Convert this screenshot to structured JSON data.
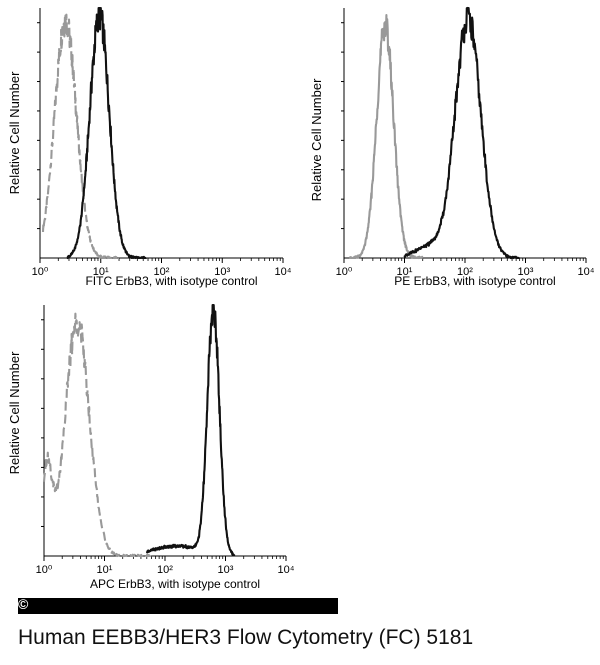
{
  "chart_data": [
    {
      "type": "histogram-overlay",
      "ylabel": "Relative Cell Number",
      "xlabel": "FITC  ErbB3,  with isotype control",
      "xscale": "log",
      "xlim": [
        1,
        10000
      ],
      "tick_labels": [
        "10⁰",
        "10¹",
        "10²",
        "10³",
        "10⁴"
      ],
      "series": [
        {
          "name": "isotype control",
          "color": "#999999",
          "dashed": true,
          "peaks": [
            {
              "log_center": 0.42,
              "height": 0.95,
              "sigma": 0.18
            }
          ],
          "range": [
            0.05,
            1.3
          ]
        },
        {
          "name": "ErbB3",
          "color": "#111111",
          "dashed": false,
          "peaks": [
            {
              "log_center": 0.98,
              "height": 0.97,
              "sigma": 0.16
            }
          ],
          "range": [
            0.45,
            1.75
          ]
        }
      ]
    },
    {
      "type": "histogram-overlay",
      "ylabel": "Relative Cell Number",
      "xlabel": "PE  ErbB3,  with isotype control",
      "xscale": "log",
      "xlim": [
        1,
        10000
      ],
      "tick_labels": [
        "10⁰",
        "10¹",
        "10²",
        "10³",
        "10⁴"
      ],
      "series": [
        {
          "name": "isotype control",
          "color": "#999999",
          "dashed": false,
          "peaks": [
            {
              "log_center": 0.68,
              "height": 0.93,
              "sigma": 0.14
            }
          ],
          "range": [
            0.1,
            1.3
          ]
        },
        {
          "name": "ErbB3",
          "color": "#111111",
          "dashed": false,
          "peaks": [
            {
              "log_center": 2.05,
              "height": 0.96,
              "sigma": 0.21
            },
            {
              "log_center": 1.45,
              "height": 0.05,
              "sigma": 0.25
            }
          ],
          "range": [
            1.0,
            2.9
          ]
        }
      ]
    },
    {
      "type": "histogram-overlay",
      "ylabel": "Relative Cell Number",
      "xlabel": "APC ErbB3, with isotype control",
      "xscale": "log",
      "xlim": [
        1,
        10000
      ],
      "tick_labels": [
        "10⁰",
        "10¹",
        "10²",
        "10³",
        "10⁴"
      ],
      "series": [
        {
          "name": "isotype control",
          "color": "#999999",
          "dashed": true,
          "peaks": [
            {
              "log_center": 0.55,
              "height": 0.93,
              "sigma": 0.2
            },
            {
              "log_center": 0.05,
              "height": 0.35,
              "sigma": 0.08
            }
          ],
          "range": [
            0.0,
            1.8
          ]
        },
        {
          "name": "ErbB3",
          "color": "#111111",
          "dashed": false,
          "peaks": [
            {
              "log_center": 2.8,
              "height": 0.97,
              "sigma": 0.1
            },
            {
              "log_center": 2.2,
              "height": 0.04,
              "sigma": 0.4
            }
          ],
          "range": [
            1.7,
            3.15
          ]
        }
      ]
    }
  ],
  "copyright": "©",
  "caption": "Human EEBB3/HER3 Flow Cytometry (FC) 5181"
}
